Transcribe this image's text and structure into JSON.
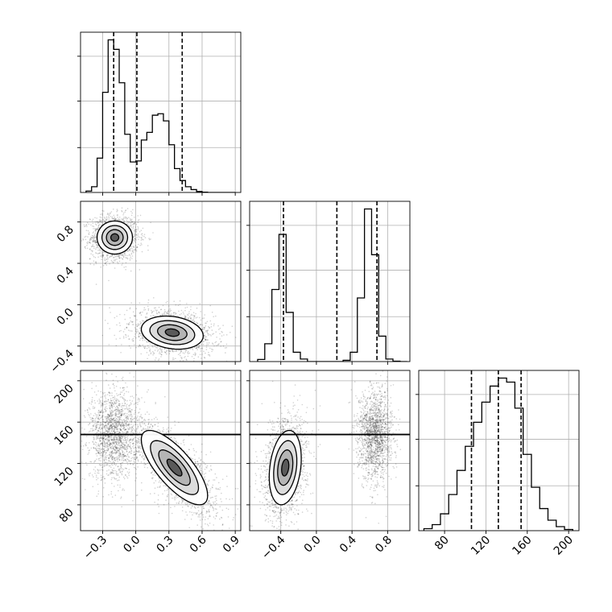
{
  "chart_data": [
    {
      "type": "histogram",
      "parameter_index": 0,
      "xlim": [
        -0.5,
        0.95
      ],
      "bins": [
        -0.45,
        -0.4,
        -0.35,
        -0.3,
        -0.25,
        -0.2,
        -0.15,
        -0.1,
        -0.05,
        0.0,
        0.05,
        0.1,
        0.15,
        0.2,
        0.25,
        0.3,
        0.35,
        0.4,
        0.45,
        0.5,
        0.55,
        0.6,
        0.65,
        0.7,
        0.75,
        0.8,
        0.85,
        0.9
      ],
      "counts": [
        0.3,
        1.2,
        7.2,
        21.0,
        32.0,
        30.0,
        23.0,
        12.2,
        6.4,
        6.6,
        11.0,
        12.6,
        16.2,
        16.5,
        15.0,
        10.0,
        5.0,
        2.5,
        1.2,
        0.6,
        0.2,
        0.05,
        0,
        0,
        0,
        0,
        0
      ],
      "quantiles": [
        -0.2,
        0.01,
        0.42
      ],
      "x_ticks": [
        "−0.3",
        "0.0",
        "0.3",
        "0.6",
        "0.9"
      ],
      "x_tick_values": [
        -0.3,
        0.0,
        0.3,
        0.6,
        0.9
      ]
    },
    {
      "type": "contour",
      "parameter_indices": [
        0,
        1
      ],
      "xlim": [
        -0.5,
        0.95
      ],
      "ylim": [
        -0.55,
        1.0
      ],
      "y_ticks": [
        "−0.4",
        "0.0",
        "0.4",
        "0.8"
      ],
      "y_tick_values": [
        -0.4,
        0.0,
        0.4,
        0.8
      ],
      "modes": [
        {
          "x": -0.19,
          "y": 0.65,
          "sx": 0.08,
          "sy": 0.08,
          "corr": 0.0,
          "weight": 0.5
        },
        {
          "x": 0.33,
          "y": -0.27,
          "sx": 0.14,
          "sy": 0.08,
          "corr": -0.2,
          "weight": 0.5
        }
      ]
    },
    {
      "type": "histogram",
      "parameter_index": 1,
      "xlim": [
        -0.75,
        1.05
      ],
      "bins": [
        -0.66,
        -0.58,
        -0.5,
        -0.42,
        -0.34,
        -0.26,
        -0.18,
        -0.1,
        -0.02,
        0.06,
        0.14,
        0.22,
        0.3,
        0.38,
        0.46,
        0.54,
        0.62,
        0.7,
        0.78,
        0.86,
        0.94,
        1.02
      ],
      "counts": [
        0.5,
        4.2,
        17.0,
        30.0,
        11.6,
        2.2,
        0.6,
        0,
        0,
        0,
        0,
        0,
        0.3,
        2.2,
        15.0,
        36.0,
        25.2,
        6.0,
        0.6,
        0.1,
        0
      ],
      "quantiles": [
        -0.37,
        0.23,
        0.68
      ],
      "x_ticks": [
        "−0.4",
        "0.0",
        "0.4",
        "0.8"
      ],
      "x_tick_values": [
        -0.4,
        0.0,
        0.4,
        0.8
      ]
    },
    {
      "type": "contour",
      "parameter_indices": [
        0,
        2
      ],
      "xlim": [
        -0.5,
        0.95
      ],
      "ylim": [
        55,
        210
      ],
      "y_ticks": [
        "80",
        "120",
        "160",
        "200"
      ],
      "y_tick_values": [
        80,
        120,
        160,
        200
      ],
      "modes": [
        {
          "x": -0.2,
          "y": 148,
          "sx": 0.08,
          "sy": 16,
          "corr": 0.0,
          "weight": 0.5
        },
        {
          "x": 0.35,
          "y": 116,
          "sx": 0.15,
          "sy": 18,
          "corr": -0.75,
          "weight": 0.5
        }
      ]
    },
    {
      "type": "contour",
      "parameter_indices": [
        1,
        2
      ],
      "xlim": [
        -0.75,
        1.05
      ],
      "ylim": [
        55,
        210
      ],
      "modes": [
        {
          "x": -0.35,
          "y": 116,
          "sx": 0.09,
          "sy": 18,
          "corr": 0.25,
          "weight": 0.5
        },
        {
          "x": 0.66,
          "y": 148,
          "sx": 0.07,
          "sy": 16,
          "corr": 0.0,
          "weight": 0.5
        }
      ]
    },
    {
      "type": "histogram",
      "parameter_index": 2,
      "xlim": [
        55,
        210
      ],
      "bins": [
        60,
        68,
        76,
        84,
        92,
        100,
        108,
        116,
        124,
        132,
        140,
        148,
        156,
        164,
        172,
        180,
        188,
        196,
        204
      ],
      "counts": [
        0.5,
        1.5,
        4.2,
        9.0,
        15.0,
        21.0,
        27.0,
        32.0,
        36.0,
        38.0,
        37.0,
        30.5,
        19.0,
        10.8,
        5.5,
        2.6,
        1.0,
        0.3
      ],
      "quantiles": [
        106,
        132,
        154
      ],
      "x_ticks": [
        "80",
        "120",
        "160",
        "200"
      ],
      "x_tick_values": [
        80,
        120,
        160,
        200
      ]
    }
  ]
}
